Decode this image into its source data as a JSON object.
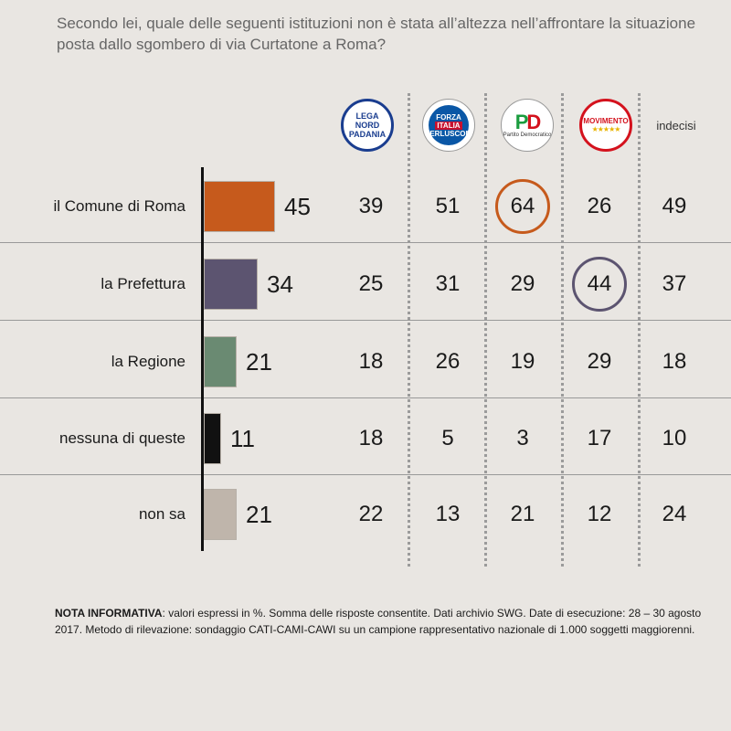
{
  "question": "Secondo lei, quale delle seguenti istituzioni non è stata all’altezza nell’affrontare la situazione posta dallo sgombero di via Curtatone a Roma?",
  "logos": {
    "lega": "LEGA NORD PADANIA",
    "fi": [
      "FORZA",
      "ITALIA",
      "BERLUSCONI"
    ],
    "pd_sub": "Partito Democratico",
    "m5s": "MOVIMENTO",
    "m5s_stars": "★★★★★"
  },
  "colors": {
    "comune": "#c65a1c",
    "prefettura": "#5c5470",
    "regione": "#6a8a72",
    "nessuna": "#111111",
    "nonsa": "#bfb5ab",
    "circle_comune": "#c65a1c",
    "circle_prefettura": "#5c5470"
  },
  "chart_data": {
    "type": "bar",
    "orientation": "horizontal",
    "categories": [
      "il Comune di Roma",
      "la Prefettura",
      "la Regione",
      "nessuna di queste",
      "non sa"
    ],
    "values": [
      45,
      34,
      21,
      11,
      21
    ],
    "xlim": [
      0,
      100
    ],
    "table": {
      "columns": [
        "Lega Nord",
        "Forza Italia",
        "PD",
        "Movimento 5 Stelle",
        "indecisi"
      ],
      "column_header_text": [
        "",
        "",
        "",
        "",
        "indecisi"
      ],
      "rows": [
        [
          39,
          51,
          64,
          26,
          49
        ],
        [
          25,
          31,
          29,
          44,
          37
        ],
        [
          18,
          26,
          19,
          29,
          18
        ],
        [
          18,
          5,
          3,
          17,
          10
        ],
        [
          22,
          13,
          21,
          12,
          24
        ]
      ],
      "highlighted": [
        {
          "row": 0,
          "col": 2
        },
        {
          "row": 1,
          "col": 3
        }
      ]
    }
  },
  "note": {
    "bold": "NOTA INFORMATIVA",
    "text": ": valori espressi in %. Somma delle risposte consentite. Dati archivio SWG. Date di esecuzione: 28 – 30 agosto 2017. Metodo di rilevazione: sondaggio CATI-CAMI-CAWI su un campione rappresentativo nazionale di 1.000 soggetti maggiorenni."
  }
}
